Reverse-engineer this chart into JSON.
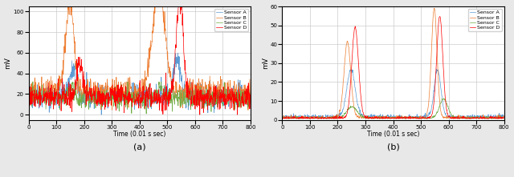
{
  "title_a": "(a)",
  "title_b": "(b)",
  "xlabel_a": "Time (0.01 s sec)",
  "xlabel_b": "Time (0.01 s sec)",
  "ylabel": "mV",
  "legend_labels": [
    "Sensor A",
    "Sensor B",
    "Sensor C",
    "Sensor D"
  ],
  "colors": [
    "#5B9BD5",
    "#ED7D31",
    "#70AD47",
    "#FF0000"
  ],
  "xlim_a": [
    0,
    800
  ],
  "ylim_a": [
    -5,
    105
  ],
  "yticks_a": [
    0,
    20,
    40,
    60,
    80,
    100
  ],
  "xticks_a": [
    0,
    100,
    200,
    300,
    400,
    500,
    600,
    700,
    800
  ],
  "xlim_b": [
    0,
    800
  ],
  "ylim_b": [
    0,
    60
  ],
  "yticks_b": [
    0,
    10,
    20,
    30,
    40,
    50,
    60
  ],
  "xticks_b": [
    0,
    100,
    200,
    300,
    400,
    500,
    600,
    700,
    800
  ],
  "bg_color": "#e8e8e8",
  "plot_bg": "white",
  "seed": 42,
  "n_points": 800
}
